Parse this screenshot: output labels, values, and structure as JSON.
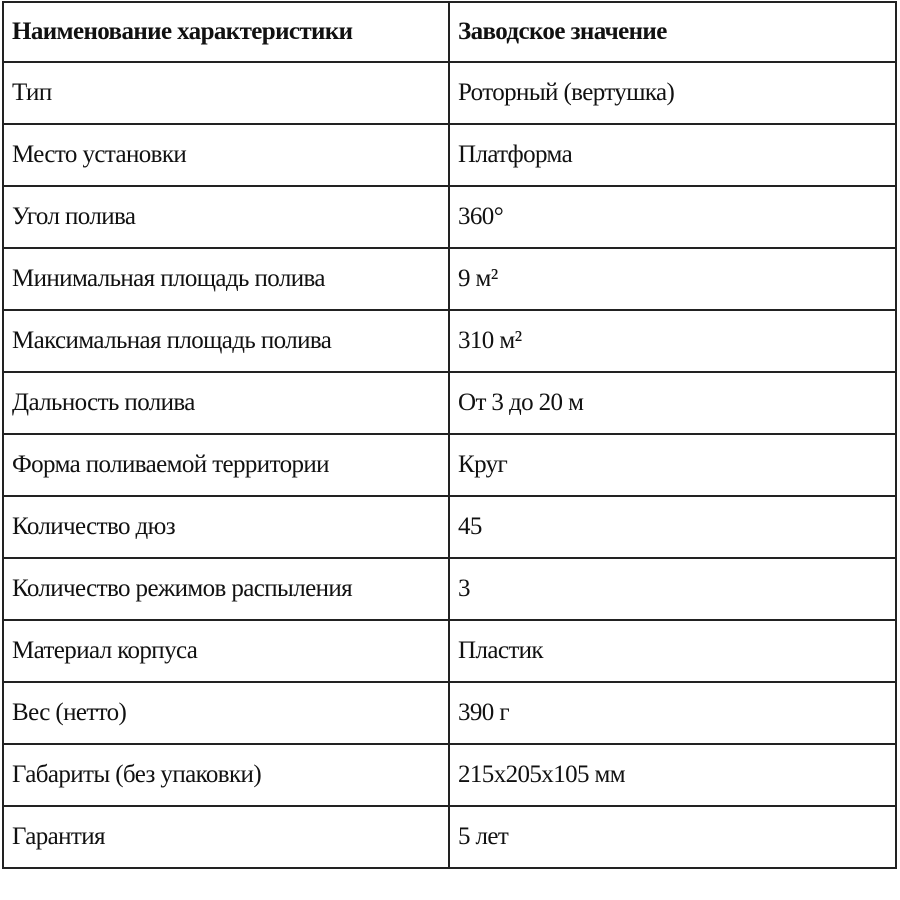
{
  "table": {
    "header": [
      "Наименование характеристики",
      "Заводское значение"
    ],
    "rows": [
      [
        "Тип",
        "Роторный (вертушка)"
      ],
      [
        "Место установки",
        "Платформа"
      ],
      [
        "Угол полива",
        "360°"
      ],
      [
        "Минимальная площадь полива",
        "9 м²"
      ],
      [
        "Максимальная площадь полива",
        "310 м²"
      ],
      [
        "Дальность полива",
        "От 3 до 20 м"
      ],
      [
        "Форма поливаемой территории",
        "Круг"
      ],
      [
        "Количество дюз",
        "45"
      ],
      [
        "Количество режимов распыления",
        "3"
      ],
      [
        "Материал корпуса",
        "Пластик"
      ],
      [
        "Вес (нетто)",
        "390 г"
      ],
      [
        "Габариты (без упаковки)",
        "215x205x105 мм"
      ],
      [
        "Гарантия",
        "5 лет"
      ]
    ]
  }
}
